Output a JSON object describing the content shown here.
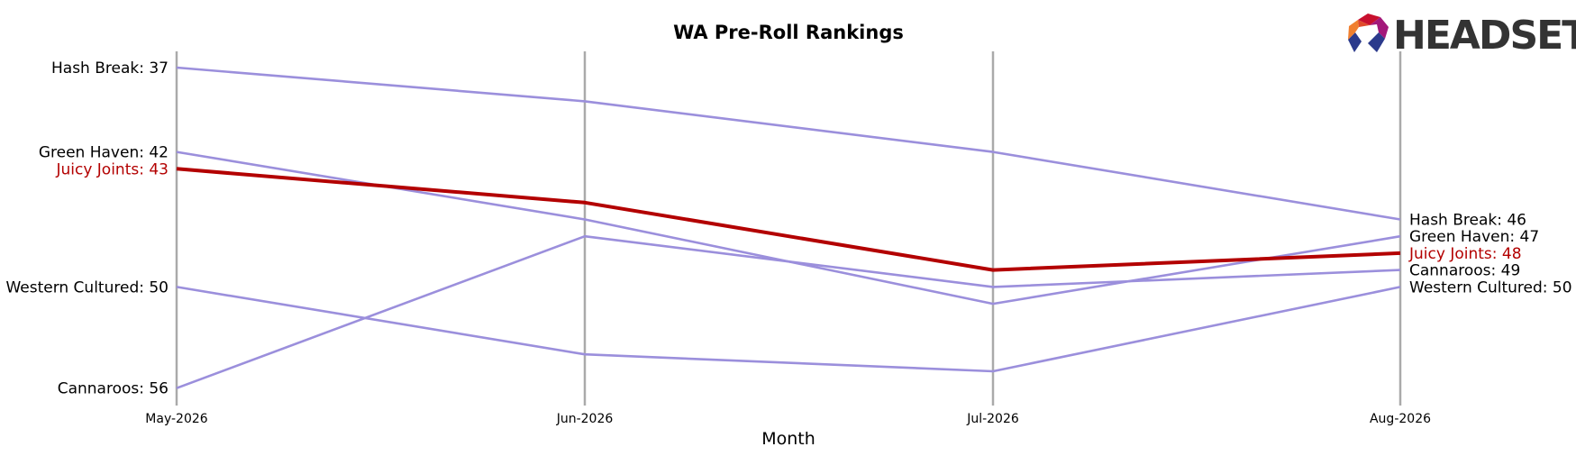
{
  "chart_data": {
    "type": "line",
    "title": "WA Pre-Roll Rankings",
    "xlabel": "Month",
    "ylabel": "",
    "x": [
      "May-2026",
      "Jun-2026",
      "Jul-2026",
      "Aug-2026"
    ],
    "y_inverted": true,
    "grid": "vertical lines at each month",
    "highlight": "Juicy Joints",
    "series": [
      {
        "name": "Hash Break",
        "values": [
          37,
          39,
          42,
          46
        ],
        "color": "#9b8fdc",
        "highlight": false
      },
      {
        "name": "Green Haven",
        "values": [
          42,
          46,
          51,
          47
        ],
        "color": "#9b8fdc",
        "highlight": false
      },
      {
        "name": "Juicy Joints",
        "values": [
          43,
          45,
          49,
          48
        ],
        "color": "#b30000",
        "highlight": true
      },
      {
        "name": "Western Cultured",
        "values": [
          50,
          54,
          55,
          50
        ],
        "color": "#9b8fdc",
        "highlight": false
      },
      {
        "name": "Cannaroos",
        "values": [
          56,
          47,
          50,
          49
        ],
        "color": "#9b8fdc",
        "highlight": false
      }
    ],
    "left_labels": [
      {
        "text": "Hash Break: 37",
        "series": "Hash Break",
        "highlight": false
      },
      {
        "text": "Green Haven: 42",
        "series": "Green Haven",
        "highlight": false
      },
      {
        "text": "Juicy Joints: 43",
        "series": "Juicy Joints",
        "highlight": true
      },
      {
        "text": "Western Cultured: 50",
        "series": "Western Cultured",
        "highlight": false
      },
      {
        "text": "Cannaroos: 56",
        "series": "Cannaroos",
        "highlight": false
      }
    ],
    "right_labels": [
      {
        "text": "Hash Break: 46",
        "series": "Hash Break",
        "highlight": false
      },
      {
        "text": "Green Haven: 47",
        "series": "Green Haven",
        "highlight": false
      },
      {
        "text": "Juicy Joints: 48",
        "series": "Juicy Joints",
        "highlight": true
      },
      {
        "text": "Cannaroos: 49",
        "series": "Cannaroos",
        "highlight": false
      },
      {
        "text": "Western Cultured: 50",
        "series": "Western Cultured",
        "highlight": false
      }
    ]
  },
  "logo": {
    "text": "HEADSET"
  },
  "colors": {
    "highlight": "#b30000",
    "other": "#9b8fdc",
    "gridline": "#aaaaaa"
  }
}
